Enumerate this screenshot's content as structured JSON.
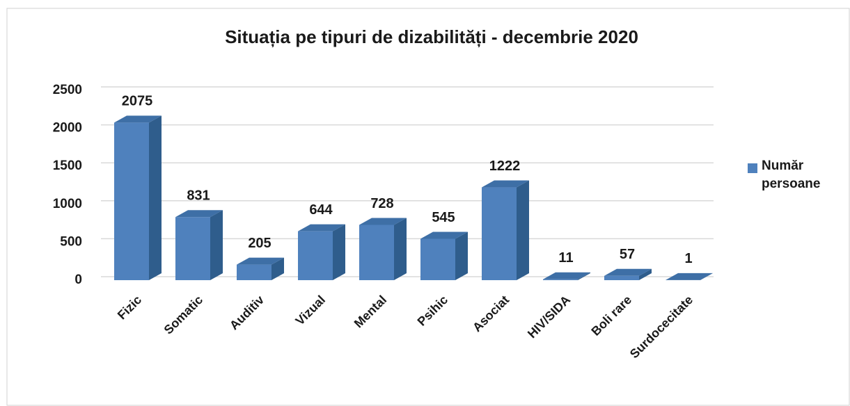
{
  "chart_data": {
    "type": "bar3d",
    "title": "Situația pe tipuri de dizabilități - decembrie 2020",
    "categories": [
      "Fizic",
      "Somatic",
      "Auditiv",
      "Vizual",
      "Mental",
      "Psihic",
      "Asociat",
      "HIV/SIDA",
      "Boli rare",
      "Surdocecitate"
    ],
    "series": [
      {
        "name": "Număr persoane",
        "color": "#4f81bd",
        "values": [
          2075,
          831,
          205,
          644,
          728,
          545,
          1222,
          11,
          57,
          1
        ]
      }
    ],
    "ylim": [
      0,
      2500
    ],
    "yticks": [
      0,
      500,
      1000,
      1500,
      2000,
      2500
    ],
    "grid": true,
    "legend": "right"
  }
}
